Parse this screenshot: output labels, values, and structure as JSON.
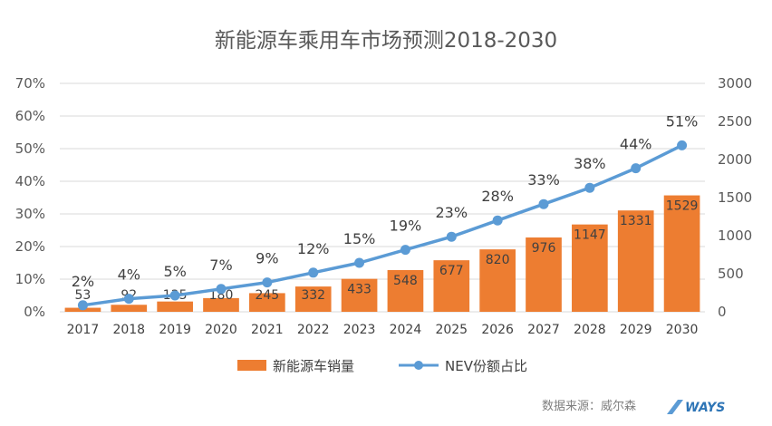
{
  "chart_data": {
    "type": "bar",
    "title": "新能源车乘用车市场预测2018-2030",
    "categories": [
      "2017",
      "2018",
      "2019",
      "2020",
      "2021",
      "2022",
      "2023",
      "2024",
      "2025",
      "2026",
      "2027",
      "2028",
      "2029",
      "2030"
    ],
    "series": [
      {
        "name": "新能源车销量",
        "type": "bar",
        "axis": "right",
        "color": "#ed7d31",
        "values": [
          53,
          92,
          135,
          180,
          245,
          332,
          433,
          548,
          677,
          820,
          976,
          1147,
          1331,
          1529
        ]
      },
      {
        "name": "NEV份额占比",
        "type": "line",
        "axis": "left",
        "color": "#5b9bd5",
        "values": [
          2,
          4,
          5,
          7,
          9,
          12,
          15,
          19,
          23,
          28,
          33,
          38,
          44,
          51
        ],
        "labels": [
          "2%",
          "4%",
          "5%",
          "7%",
          "9%",
          "12%",
          "15%",
          "19%",
          "23%",
          "28%",
          "33%",
          "38%",
          "44%",
          "51%"
        ]
      }
    ],
    "left_axis": {
      "ylim": [
        0,
        70
      ],
      "ticks": [
        0,
        10,
        20,
        30,
        40,
        50,
        60,
        70
      ],
      "tick_labels": [
        "0%",
        "10%",
        "20%",
        "30%",
        "40%",
        "50%",
        "60%",
        "70%"
      ]
    },
    "right_axis": {
      "ylim": [
        0,
        3000
      ],
      "ticks": [
        0,
        500,
        1000,
        1500,
        2000,
        2500,
        3000
      ],
      "tick_labels": [
        "0",
        "500",
        "1000",
        "1500",
        "2000",
        "2500",
        "3000"
      ]
    },
    "legend_position": "bottom"
  },
  "footer": {
    "source": "数据来源：威尔森",
    "brand": "WAYS"
  }
}
